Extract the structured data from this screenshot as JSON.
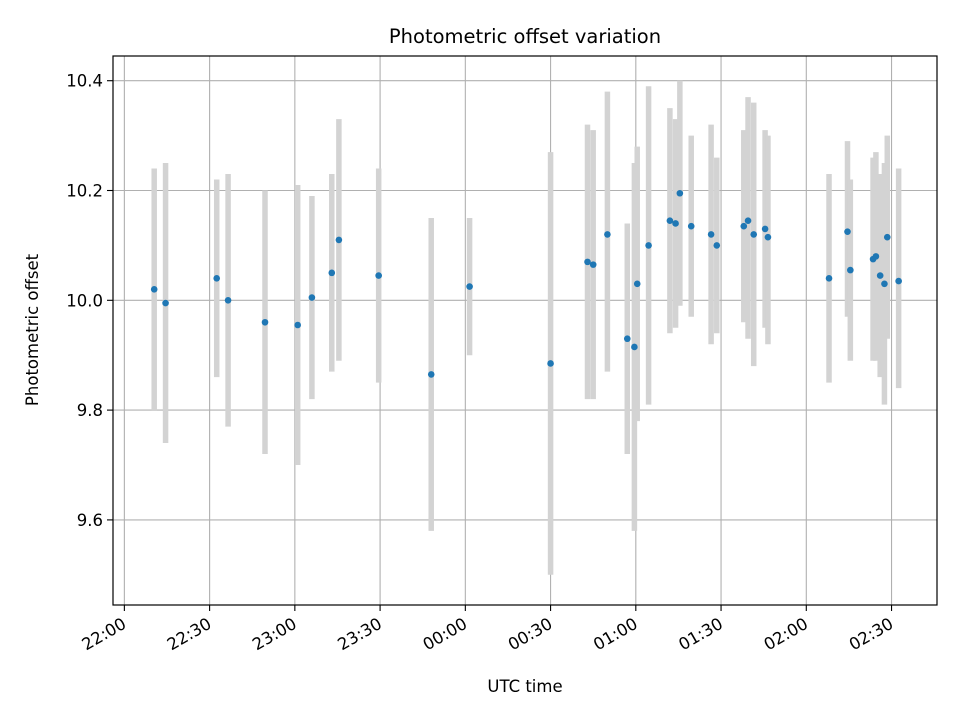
{
  "chart_data": {
    "type": "scatter",
    "title": "Photometric offset variation",
    "xlabel": "UTC time",
    "ylabel": "Photometric offset",
    "x_axis_kind": "time",
    "xlim": [
      "21:56",
      "02:46"
    ],
    "ylim": [
      9.445,
      10.445
    ],
    "x_ticks": [
      "22:00",
      "22:30",
      "23:00",
      "23:30",
      "00:00",
      "00:30",
      "01:00",
      "01:30",
      "02:00",
      "02:30"
    ],
    "y_ticks": [
      9.6,
      9.8,
      10.0,
      10.2,
      10.4
    ],
    "y_tick_labels": [
      "9.6",
      "9.8",
      "10.0",
      "10.2",
      "10.4"
    ],
    "grid": true,
    "legend": "none",
    "colors": {
      "points": "#1f77b4",
      "error_bars": "#d3d3d3",
      "grid": "#b0b0b0"
    },
    "series": [
      {
        "style": "points with vertical error bars",
        "points": [
          {
            "x": "22:10:30",
            "y": 10.02,
            "low": 9.8,
            "high": 10.24
          },
          {
            "x": "22:14:30",
            "y": 9.995,
            "low": 9.74,
            "high": 10.25
          },
          {
            "x": "22:32:30",
            "y": 10.04,
            "low": 9.86,
            "high": 10.22
          },
          {
            "x": "22:36:30",
            "y": 10.0,
            "low": 9.77,
            "high": 10.23
          },
          {
            "x": "22:49:30",
            "y": 9.96,
            "low": 9.72,
            "high": 10.2
          },
          {
            "x": "23:01:00",
            "y": 9.955,
            "low": 9.7,
            "high": 10.21
          },
          {
            "x": "23:06:00",
            "y": 10.005,
            "low": 9.82,
            "high": 10.19
          },
          {
            "x": "23:13:00",
            "y": 10.05,
            "low": 9.87,
            "high": 10.23
          },
          {
            "x": "23:15:30",
            "y": 10.11,
            "low": 9.89,
            "high": 10.33
          },
          {
            "x": "23:29:30",
            "y": 10.045,
            "low": 9.85,
            "high": 10.24
          },
          {
            "x": "23:48:00",
            "y": 9.865,
            "low": 9.58,
            "high": 10.15
          },
          {
            "x": "00:01:30",
            "y": 10.025,
            "low": 9.9,
            "high": 10.15
          },
          {
            "x": "00:30:00",
            "y": 9.885,
            "low": 9.5,
            "high": 10.27
          },
          {
            "x": "00:43:00",
            "y": 10.07,
            "low": 9.82,
            "high": 10.32
          },
          {
            "x": "00:45:00",
            "y": 10.065,
            "low": 9.82,
            "high": 10.31
          },
          {
            "x": "00:50:00",
            "y": 10.12,
            "low": 9.87,
            "high": 10.38
          },
          {
            "x": "00:57:00",
            "y": 9.93,
            "low": 9.72,
            "high": 10.14
          },
          {
            "x": "00:59:30",
            "y": 9.915,
            "low": 9.58,
            "high": 10.25
          },
          {
            "x": "01:00:30",
            "y": 10.03,
            "low": 9.78,
            "high": 10.28
          },
          {
            "x": "01:04:30",
            "y": 10.1,
            "low": 9.81,
            "high": 10.39
          },
          {
            "x": "01:12:00",
            "y": 10.145,
            "low": 9.94,
            "high": 10.35
          },
          {
            "x": "01:14:00",
            "y": 10.14,
            "low": 9.95,
            "high": 10.33
          },
          {
            "x": "01:15:30",
            "y": 10.195,
            "low": 9.99,
            "high": 10.4
          },
          {
            "x": "01:19:30",
            "y": 10.135,
            "low": 9.97,
            "high": 10.3
          },
          {
            "x": "01:26:30",
            "y": 10.12,
            "low": 9.92,
            "high": 10.32
          },
          {
            "x": "01:28:30",
            "y": 10.1,
            "low": 9.94,
            "high": 10.26
          },
          {
            "x": "01:38:00",
            "y": 10.135,
            "low": 9.96,
            "high": 10.31
          },
          {
            "x": "01:39:30",
            "y": 10.145,
            "low": 9.93,
            "high": 10.37
          },
          {
            "x": "01:41:30",
            "y": 10.12,
            "low": 9.88,
            "high": 10.36
          },
          {
            "x": "01:45:30",
            "y": 10.13,
            "low": 9.95,
            "high": 10.31
          },
          {
            "x": "01:46:30",
            "y": 10.115,
            "low": 9.92,
            "high": 10.3
          },
          {
            "x": "02:08:00",
            "y": 10.04,
            "low": 9.85,
            "high": 10.23
          },
          {
            "x": "02:14:30",
            "y": 10.125,
            "low": 9.97,
            "high": 10.29
          },
          {
            "x": "02:15:30",
            "y": 10.055,
            "low": 9.89,
            "high": 10.22
          },
          {
            "x": "02:23:30",
            "y": 10.075,
            "low": 9.89,
            "high": 10.26
          },
          {
            "x": "02:24:30",
            "y": 10.08,
            "low": 9.89,
            "high": 10.27
          },
          {
            "x": "02:26:00",
            "y": 10.045,
            "low": 9.86,
            "high": 10.23
          },
          {
            "x": "02:27:30",
            "y": 10.03,
            "low": 9.81,
            "high": 10.25
          },
          {
            "x": "02:28:30",
            "y": 10.115,
            "low": 9.93,
            "high": 10.3
          },
          {
            "x": "02:32:30",
            "y": 10.035,
            "low": 9.84,
            "high": 10.24
          }
        ]
      }
    ]
  }
}
